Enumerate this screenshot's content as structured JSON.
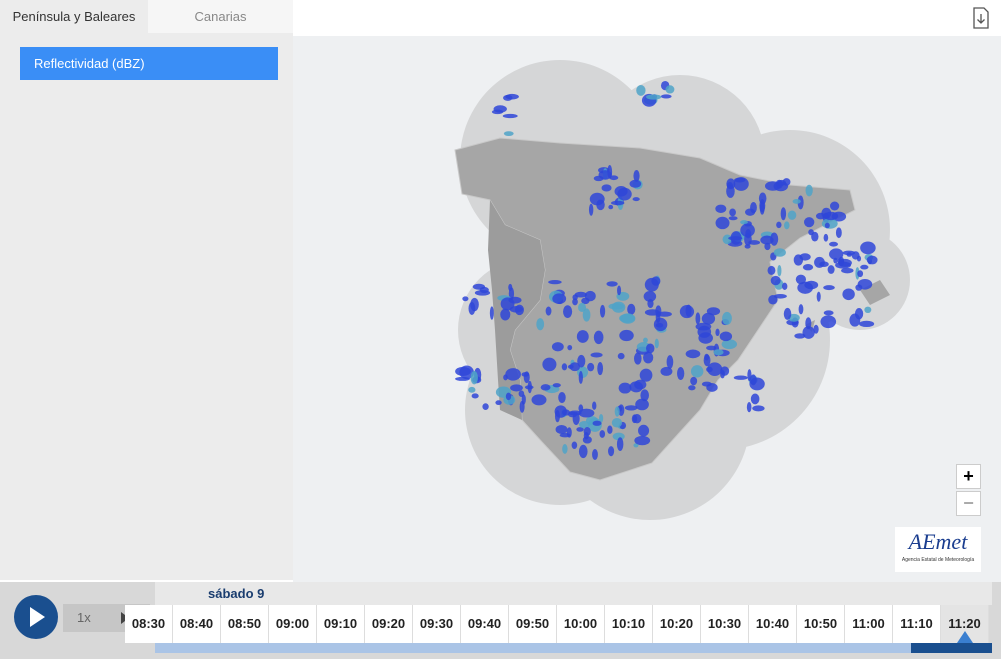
{
  "tabs": [
    "Península y Baleares",
    "Canarias"
  ],
  "active_tab": 0,
  "layer_button": "Reflectividad (dBZ)",
  "speed": "1x",
  "timeline": {
    "day": "sábado 9",
    "times": [
      "08:30",
      "08:40",
      "08:50",
      "09:00",
      "09:10",
      "09:20",
      "09:30",
      "09:40",
      "09:50",
      "10:00",
      "10:10",
      "10:20",
      "10:30",
      "10:40",
      "10:50",
      "11:00",
      "11:10",
      "11:20"
    ],
    "current_index": 17
  },
  "zoom": {
    "in": "+",
    "out": "−"
  },
  "logo": {
    "name": "AEmet",
    "subtitle": "Agencia Estatal de Meteorología"
  }
}
